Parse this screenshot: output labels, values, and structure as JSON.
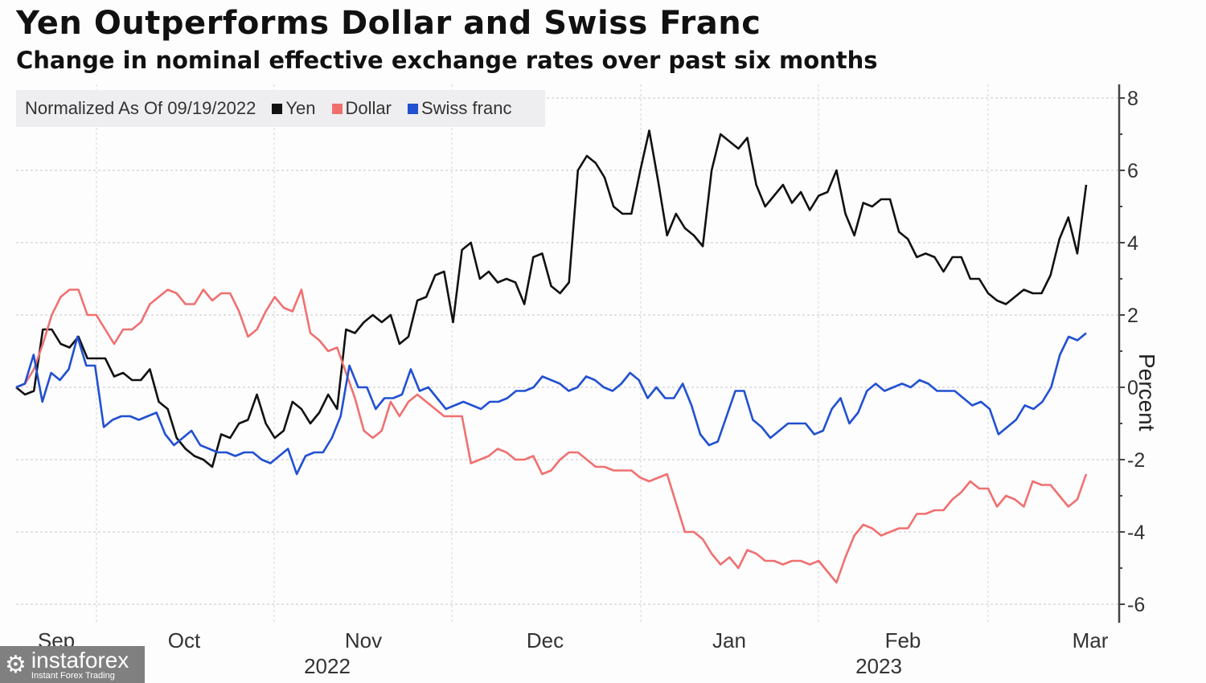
{
  "header": {
    "title": "Yen Outperforms Dollar and Swiss Franc",
    "subtitle": "Change in nominal effective exchange rates over past six months"
  },
  "legend": {
    "note": "Normalized As Of 09/19/2022",
    "items": [
      {
        "label": "Yen",
        "color": "#111111"
      },
      {
        "label": "Dollar",
        "color": "#f07070"
      },
      {
        "label": "Swiss franc",
        "color": "#2150d0"
      }
    ]
  },
  "watermark": {
    "brand": "instaforex",
    "tagline": "Instant Forex Trading"
  },
  "chart_data": {
    "type": "line",
    "title": "Yen Outperforms Dollar and Swiss Franc",
    "subtitle": "Change in nominal effective exchange rates over past six months",
    "xlabel": "",
    "ylabel": "Percent",
    "ylim": [
      -6,
      8
    ],
    "yticks": [
      8,
      6,
      4,
      2,
      0,
      -2,
      -4,
      -6
    ],
    "x_range": [
      "2022-09-19",
      "2023-03-10"
    ],
    "month_ticks": [
      {
        "label": "Sep",
        "year": ""
      },
      {
        "label": "Oct",
        "year": ""
      },
      {
        "label": "Nov",
        "year": "2022"
      },
      {
        "label": "Dec",
        "year": ""
      },
      {
        "label": "Jan",
        "year": ""
      },
      {
        "label": "Feb",
        "year": "2023"
      },
      {
        "label": "Mar",
        "year": ""
      }
    ],
    "grid": true,
    "legend_position": "top-left",
    "axis_position": "right",
    "series": [
      {
        "name": "Yen",
        "color": "#111111",
        "values": [
          0,
          -0.2,
          -0.1,
          1.6,
          1.6,
          1.2,
          1.1,
          1.4,
          0.8,
          0.8,
          0.8,
          0.3,
          0.4,
          0.2,
          0.2,
          0.5,
          -0.4,
          -0.6,
          -1.4,
          -1.7,
          -1.9,
          -2.0,
          -2.2,
          -1.3,
          -1.4,
          -1.0,
          -0.9,
          -0.2,
          -1.0,
          -1.4,
          -1.2,
          -0.4,
          -0.6,
          -1.0,
          -0.7,
          -0.2,
          -0.6,
          1.6,
          1.5,
          1.8,
          2.0,
          1.8,
          2.0,
          1.2,
          1.4,
          2.4,
          2.5,
          3.1,
          3.2,
          1.8,
          3.8,
          4.0,
          3.0,
          3.2,
          2.9,
          3.0,
          2.9,
          2.3,
          3.6,
          3.7,
          2.8,
          2.6,
          2.9,
          6.0,
          6.4,
          6.2,
          5.8,
          5.0,
          4.8,
          4.8,
          6.0,
          7.1,
          5.7,
          4.2,
          4.8,
          4.4,
          4.2,
          3.9,
          6.0,
          7.0,
          6.8,
          6.6,
          6.9,
          5.6,
          5.0,
          5.3,
          5.6,
          5.1,
          5.4,
          4.9,
          5.3,
          5.4,
          6.0,
          4.8,
          4.2,
          5.1,
          5.0,
          5.2,
          5.2,
          4.3,
          4.1,
          3.6,
          3.7,
          3.6,
          3.2,
          3.6,
          3.6,
          3.0,
          3.0,
          2.6,
          2.4,
          2.3,
          2.5,
          2.7,
          2.6,
          2.6,
          3.1,
          4.1,
          4.7,
          3.7,
          5.6
        ]
      },
      {
        "name": "Dollar",
        "color": "#f07070",
        "values": [
          0,
          0.1,
          0.5,
          1.2,
          2.0,
          2.5,
          2.7,
          2.7,
          2.0,
          2.0,
          1.6,
          1.2,
          1.6,
          1.6,
          1.8,
          2.3,
          2.5,
          2.7,
          2.6,
          2.3,
          2.3,
          2.7,
          2.4,
          2.6,
          2.6,
          2.1,
          1.4,
          1.6,
          2.1,
          2.5,
          2.2,
          2.1,
          2.7,
          1.5,
          1.3,
          1.0,
          1.1,
          0.4,
          -0.3,
          -1.2,
          -1.4,
          -1.2,
          -0.4,
          -0.8,
          -0.4,
          -0.2,
          -0.4,
          -0.6,
          -0.8,
          -0.8,
          -0.8,
          -2.1,
          -2.0,
          -1.9,
          -1.7,
          -1.8,
          -2.0,
          -2.0,
          -1.9,
          -2.4,
          -2.3,
          -2.0,
          -1.8,
          -1.8,
          -2.0,
          -2.2,
          -2.2,
          -2.3,
          -2.3,
          -2.3,
          -2.5,
          -2.6,
          -2.5,
          -2.4,
          -3.2,
          -4.0,
          -4.0,
          -4.2,
          -4.6,
          -4.9,
          -4.7,
          -5.0,
          -4.5,
          -4.6,
          -4.8,
          -4.8,
          -4.9,
          -4.8,
          -4.8,
          -4.9,
          -4.8,
          -5.1,
          -5.4,
          -4.7,
          -4.1,
          -3.8,
          -3.9,
          -4.1,
          -4.0,
          -3.9,
          -3.9,
          -3.5,
          -3.5,
          -3.4,
          -3.4,
          -3.1,
          -2.9,
          -2.6,
          -2.8,
          -2.8,
          -3.3,
          -3.0,
          -3.1,
          -3.3,
          -2.6,
          -2.7,
          -2.7,
          -3.0,
          -3.3,
          -3.1,
          -2.4
        ]
      },
      {
        "name": "Swiss franc",
        "color": "#2150d0",
        "values": [
          0,
          0.1,
          0.9,
          -0.4,
          0.4,
          0.2,
          0.5,
          1.4,
          0.6,
          0.6,
          -1.1,
          -0.9,
          -0.8,
          -0.8,
          -0.9,
          -0.8,
          -0.7,
          -1.3,
          -1.6,
          -1.4,
          -1.2,
          -1.6,
          -1.7,
          -1.8,
          -1.8,
          -1.9,
          -1.8,
          -1.8,
          -2.0,
          -2.1,
          -1.9,
          -1.7,
          -2.4,
          -1.9,
          -1.8,
          -1.8,
          -1.4,
          -0.8,
          0.6,
          0.0,
          0.0,
          -0.6,
          -0.3,
          -0.3,
          -0.2,
          0.5,
          -0.1,
          0.0,
          -0.3,
          -0.6,
          -0.5,
          -0.4,
          -0.5,
          -0.6,
          -0.4,
          -0.4,
          -0.3,
          -0.1,
          -0.1,
          0.0,
          0.3,
          0.2,
          0.1,
          -0.1,
          0.0,
          0.3,
          0.2,
          0.0,
          -0.1,
          0.1,
          0.4,
          0.2,
          -0.3,
          0.0,
          -0.3,
          -0.3,
          0.1,
          -0.5,
          -1.3,
          -1.6,
          -1.5,
          -0.8,
          -0.1,
          -0.1,
          -0.9,
          -1.1,
          -1.4,
          -1.2,
          -1.0,
          -1.0,
          -1.0,
          -1.3,
          -1.2,
          -0.6,
          -0.3,
          -1.0,
          -0.7,
          -0.1,
          0.1,
          -0.1,
          0.0,
          0.1,
          0.0,
          0.2,
          0.1,
          -0.1,
          -0.1,
          -0.1,
          -0.3,
          -0.5,
          -0.4,
          -0.6,
          -1.3,
          -1.1,
          -0.9,
          -0.5,
          -0.6,
          -0.4,
          0.0,
          0.9,
          1.4,
          1.3,
          1.5
        ]
      }
    ]
  }
}
